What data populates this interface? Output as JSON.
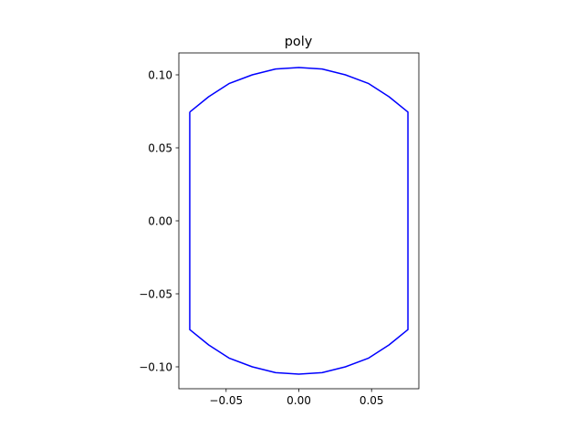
{
  "chart_data": {
    "type": "line",
    "title": "poly",
    "xlabel": "",
    "ylabel": "",
    "xlim": [
      -0.0825,
      0.0825
    ],
    "ylim": [
      -0.115,
      0.115
    ],
    "grid": false,
    "x_ticks": [
      -0.05,
      0.0,
      0.05
    ],
    "x_tick_labels": [
      "−0.05",
      "0.00",
      "0.05"
    ],
    "y_ticks": [
      0.1,
      0.05,
      0.0,
      -0.05,
      -0.1
    ],
    "y_tick_labels": [
      "0.10",
      "0.05",
      "0.00",
      "−0.05",
      "−0.10"
    ],
    "series": [
      {
        "color": "#0000ff",
        "x": [
          -0.075,
          -0.062,
          -0.048,
          -0.032,
          -0.016,
          0.0,
          0.016,
          0.032,
          0.048,
          0.062,
          0.075,
          0.075,
          0.062,
          0.048,
          0.032,
          0.016,
          0.0,
          -0.016,
          -0.032,
          -0.048,
          -0.062,
          -0.075,
          -0.075
        ],
        "y": [
          0.0745,
          0.085,
          0.094,
          0.1,
          0.104,
          0.105,
          0.104,
          0.1,
          0.094,
          0.085,
          0.0745,
          -0.0745,
          -0.085,
          -0.094,
          -0.1,
          -0.104,
          -0.105,
          -0.104,
          -0.1,
          -0.094,
          -0.085,
          -0.0745,
          0.0745
        ]
      }
    ]
  }
}
